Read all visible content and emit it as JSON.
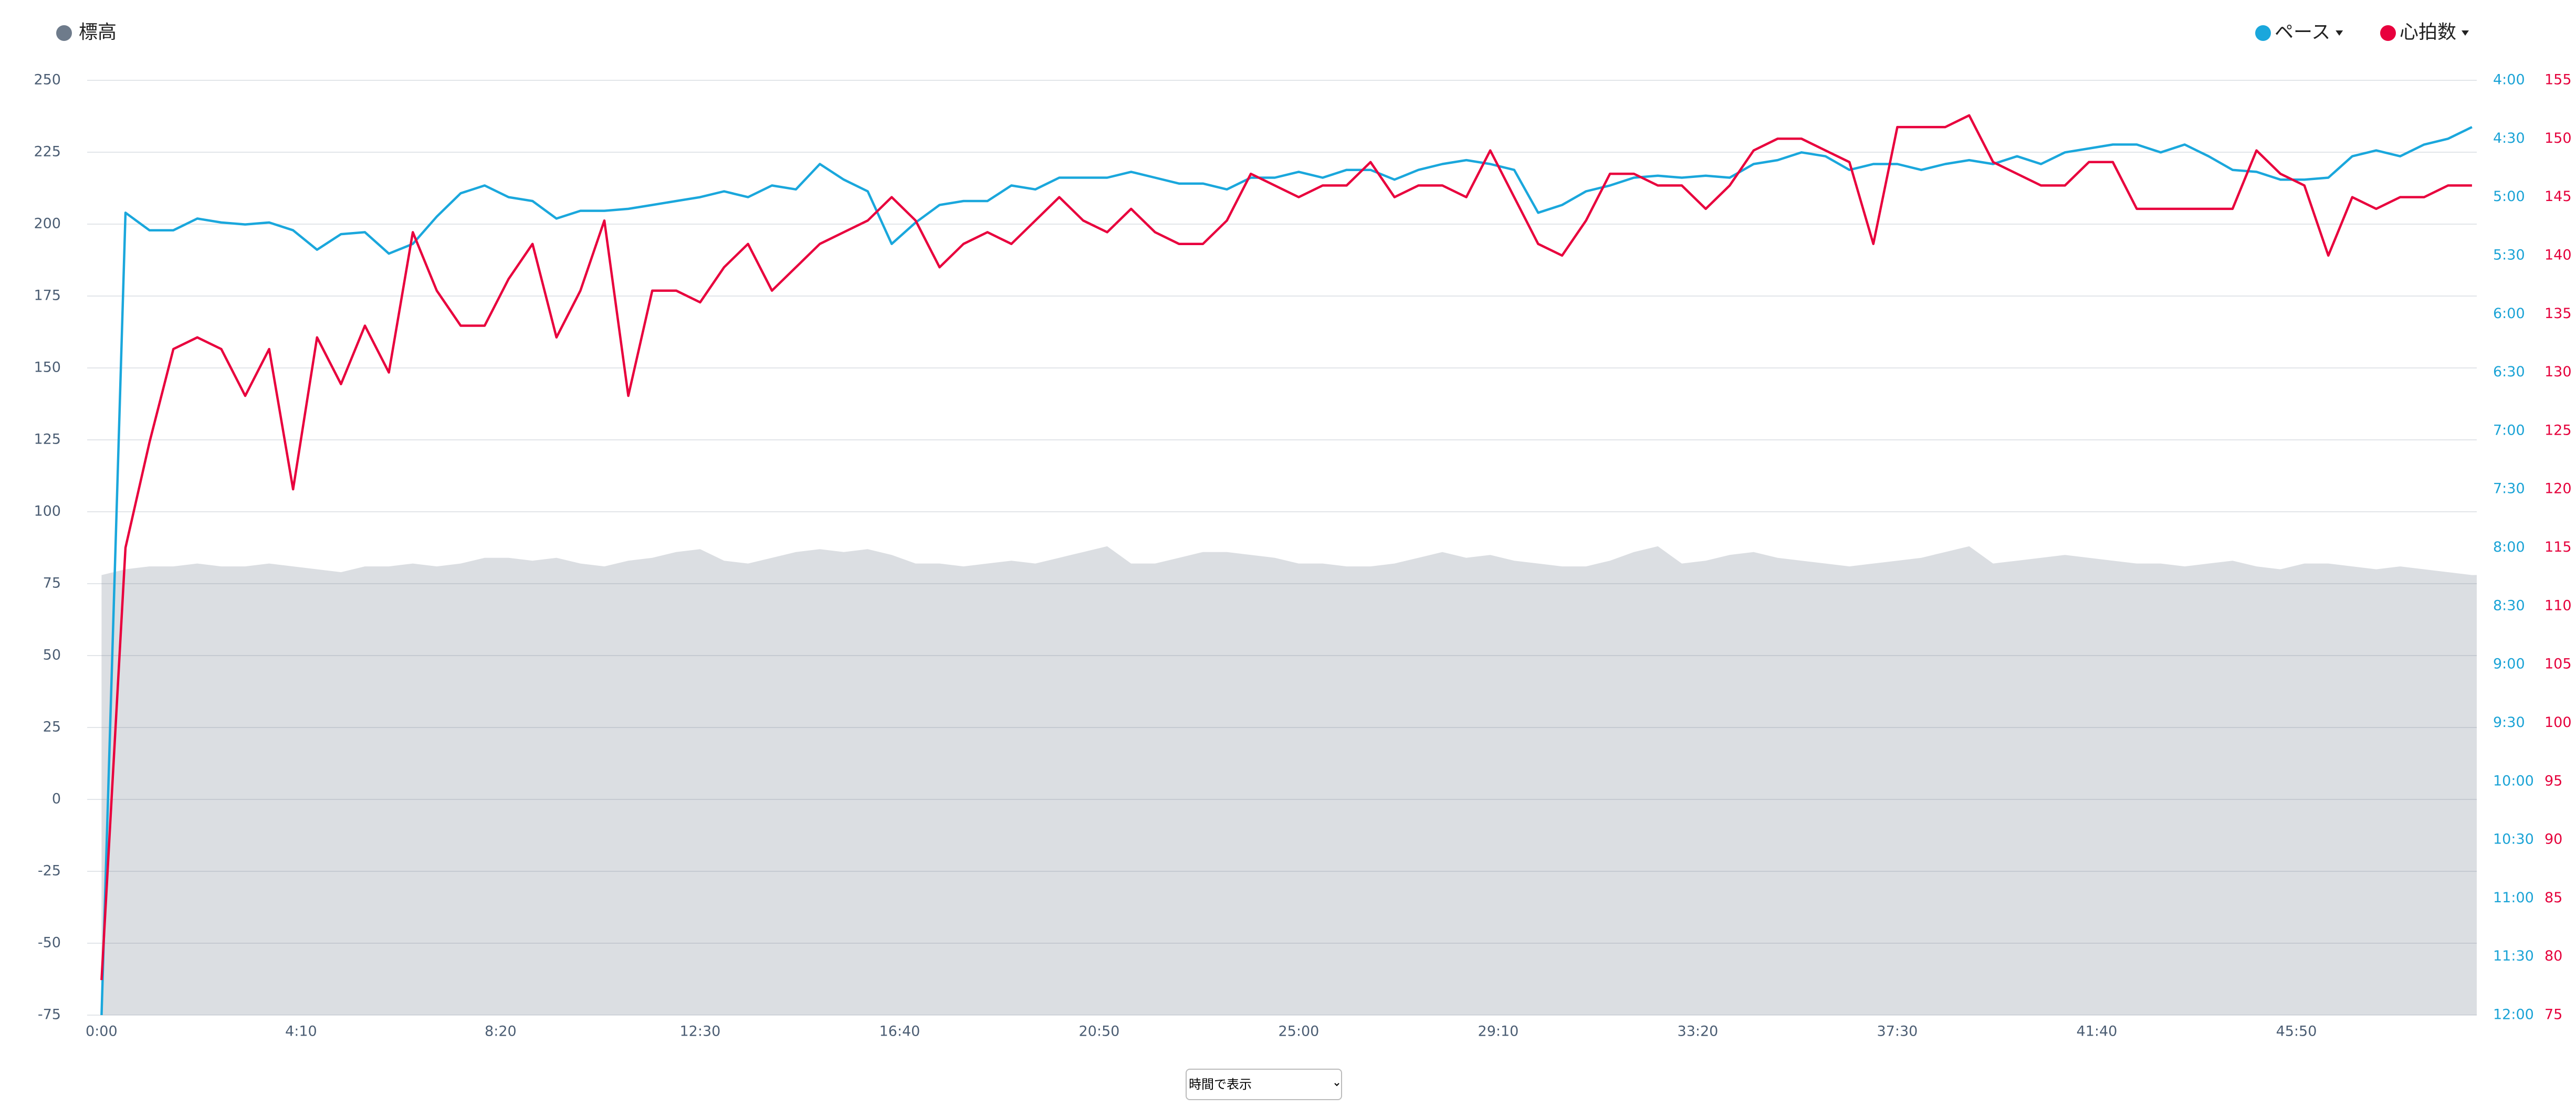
{
  "chart_data": {
    "type": "line",
    "x": [
      0,
      30,
      60,
      90,
      120,
      150,
      180,
      210,
      240,
      270,
      300,
      330,
      360,
      390,
      420,
      450,
      480,
      510,
      540,
      570,
      600,
      630,
      660,
      690,
      720,
      750,
      780,
      810,
      840,
      870,
      900,
      930,
      960,
      990,
      1020,
      1050,
      1080,
      1110,
      1140,
      1170,
      1200,
      1230,
      1260,
      1290,
      1320,
      1350,
      1380,
      1410,
      1440,
      1470,
      1500,
      1530,
      1560,
      1590,
      1620,
      1650,
      1680,
      1710,
      1740,
      1770,
      1800,
      1830,
      1860,
      1890,
      1920,
      1950,
      1980,
      2010,
      2040,
      2070,
      2100,
      2130,
      2160,
      2190,
      2220,
      2250,
      2280,
      2310,
      2340,
      2370,
      2400,
      2430,
      2460,
      2490,
      2520,
      2550,
      2580,
      2610,
      2640,
      2670,
      2700,
      2730,
      2760,
      2790,
      2820,
      2850,
      2880,
      2910,
      2940,
      2970
    ],
    "xlim": [
      -18,
      2976
    ],
    "xticks": [
      {
        "value": 0,
        "label": "0:00"
      },
      {
        "value": 250,
        "label": "4:10"
      },
      {
        "value": 500,
        "label": "8:20"
      },
      {
        "value": 750,
        "label": "12:30"
      },
      {
        "value": 1000,
        "label": "16:40"
      },
      {
        "value": 1250,
        "label": "20:50"
      },
      {
        "value": 1500,
        "label": "25:00"
      },
      {
        "value": 1750,
        "label": "29:10"
      },
      {
        "value": 2000,
        "label": "33:20"
      },
      {
        "value": 2250,
        "label": "37:30"
      },
      {
        "value": 2500,
        "label": "41:40"
      },
      {
        "value": 2750,
        "label": "45:50"
      }
    ],
    "ylim": [
      -75,
      250
    ],
    "yticks": [
      -75,
      -50,
      -25,
      0,
      25,
      50,
      75,
      100,
      125,
      150,
      175,
      200,
      225,
      250
    ],
    "y2lim": [
      720,
      240
    ],
    "y2ticks": [
      {
        "value": 240,
        "label": "4:00"
      },
      {
        "value": 270,
        "label": "4:30"
      },
      {
        "value": 300,
        "label": "5:00"
      },
      {
        "value": 330,
        "label": "5:30"
      },
      {
        "value": 360,
        "label": "6:00"
      },
      {
        "value": 390,
        "label": "6:30"
      },
      {
        "value": 420,
        "label": "7:00"
      },
      {
        "value": 450,
        "label": "7:30"
      },
      {
        "value": 480,
        "label": "8:00"
      },
      {
        "value": 510,
        "label": "8:30"
      },
      {
        "value": 540,
        "label": "9:00"
      },
      {
        "value": 570,
        "label": "9:30"
      },
      {
        "value": 600,
        "label": "10:00"
      },
      {
        "value": 630,
        "label": "10:30"
      },
      {
        "value": 660,
        "label": "11:00"
      },
      {
        "value": 690,
        "label": "11:30"
      },
      {
        "value": 720,
        "label": "12:00"
      }
    ],
    "y3lim": [
      75,
      155
    ],
    "y3ticks": [
      75,
      80,
      85,
      90,
      95,
      100,
      105,
      110,
      115,
      120,
      125,
      130,
      135,
      140,
      145,
      150,
      155
    ],
    "grid": true,
    "series": [
      {
        "name": "標高",
        "color": "#6e7b8b",
        "axis": "y",
        "style": "area",
        "values": [
          78,
          80,
          81,
          81,
          82,
          81,
          81,
          82,
          81,
          80,
          79,
          81,
          81,
          82,
          81,
          82,
          84,
          84,
          83,
          84,
          82,
          81,
          83,
          84,
          86,
          87,
          83,
          82,
          84,
          86,
          87,
          86,
          87,
          85,
          82,
          82,
          81,
          82,
          83,
          82,
          84,
          86,
          88,
          82,
          82,
          84,
          86,
          86,
          85,
          84,
          82,
          82,
          81,
          81,
          82,
          84,
          86,
          84,
          85,
          83,
          82,
          81,
          81,
          83,
          86,
          88,
          82,
          83,
          85,
          86,
          84,
          83,
          82,
          81,
          82,
          83,
          84,
          86,
          88,
          82,
          83,
          84,
          85,
          84,
          83,
          82,
          82,
          81,
          82,
          83,
          81,
          80,
          82,
          82,
          81,
          80,
          81,
          80,
          79,
          78
        ]
      },
      {
        "name": "ペース",
        "color": "#1aa7dc",
        "axis": "y2",
        "style": "line",
        "values": [
          720,
          308,
          317,
          317,
          311,
          313,
          314,
          313,
          317,
          327,
          319,
          318,
          329,
          324,
          310,
          298,
          294,
          300,
          302,
          311,
          307,
          307,
          306,
          304,
          302,
          300,
          297,
          300,
          294,
          296,
          283,
          291,
          297,
          324,
          313,
          304,
          302,
          302,
          294,
          296,
          290,
          290,
          290,
          287,
          290,
          293,
          293,
          296,
          290,
          290,
          287,
          290,
          286,
          286,
          291,
          286,
          283,
          281,
          283,
          286,
          308,
          304,
          297,
          294,
          290,
          289,
          290,
          289,
          290,
          283,
          281,
          277,
          279,
          286,
          283,
          283,
          286,
          283,
          281,
          283,
          279,
          283,
          277,
          275,
          273,
          273,
          277,
          273,
          279,
          286,
          287,
          291,
          291,
          290,
          279,
          276,
          279,
          273,
          270,
          264
        ]
      },
      {
        "name": "心拍数",
        "color": "#e8003d",
        "axis": "y3",
        "style": "line",
        "values": [
          78,
          115,
          124,
          132,
          133,
          132,
          128,
          132,
          120,
          133,
          129,
          134,
          130,
          142,
          137,
          134,
          134,
          138,
          141,
          133,
          137,
          143,
          128,
          137,
          137,
          136,
          139,
          141,
          137,
          139,
          141,
          142,
          143,
          145,
          143,
          139,
          141,
          142,
          141,
          143,
          145,
          143,
          142,
          144,
          142,
          141,
          141,
          143,
          147,
          146,
          145,
          146,
          146,
          148,
          145,
          146,
          146,
          145,
          149,
          145,
          141,
          140,
          143,
          147,
          147,
          146,
          146,
          144,
          146,
          149,
          150,
          150,
          149,
          148,
          141,
          151,
          151,
          151,
          152,
          148,
          147,
          146,
          146,
          148,
          148,
          144,
          144,
          144,
          144,
          144,
          149,
          147,
          146,
          140,
          145,
          144,
          145,
          145,
          146,
          146
        ]
      }
    ]
  },
  "controls": {
    "display_mode": "時間で表示"
  }
}
